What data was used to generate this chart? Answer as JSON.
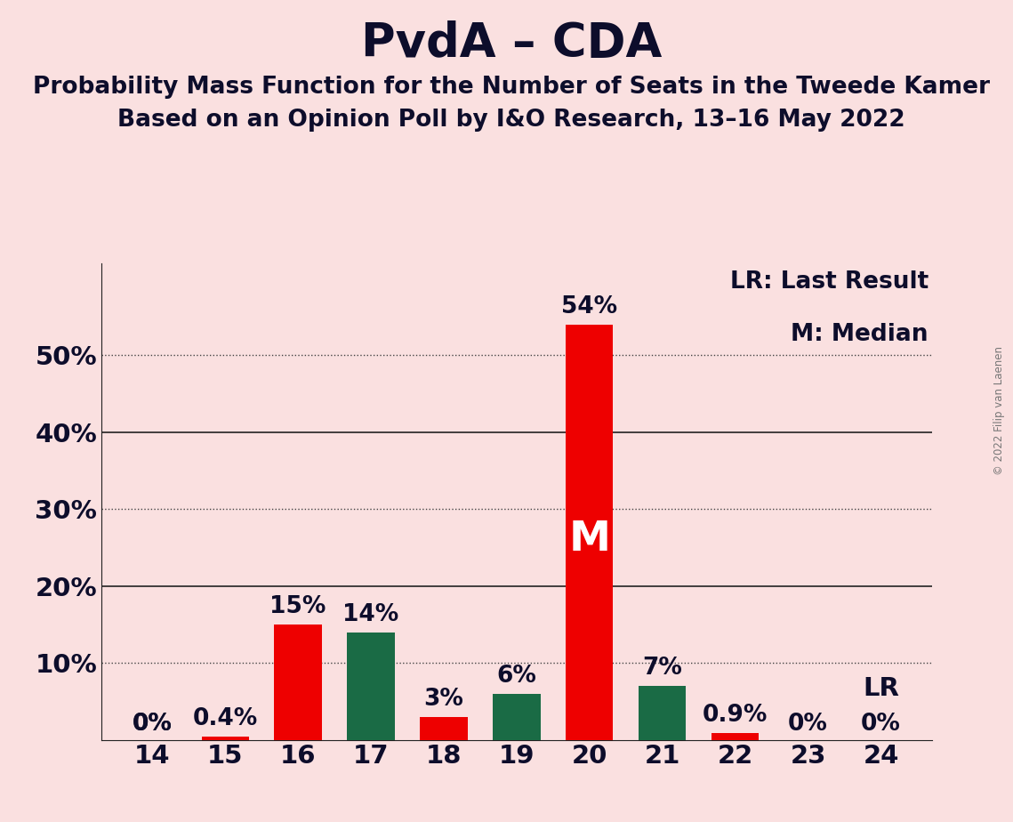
{
  "title": "PvdA – CDA",
  "subtitle1": "Probability Mass Function for the Number of Seats in the Tweede Kamer",
  "subtitle2": "Based on an Opinion Poll by I&O Research, 13–16 May 2022",
  "copyright": "© 2022 Filip van Laenen",
  "seats": [
    14,
    15,
    16,
    17,
    18,
    19,
    20,
    21,
    22,
    23,
    24
  ],
  "values": [
    0.0,
    0.4,
    15.0,
    14.0,
    3.0,
    6.0,
    54.0,
    7.0,
    0.9,
    0.0,
    0.0
  ],
  "colors": [
    "#EE0000",
    "#EE0000",
    "#EE0000",
    "#1A6B45",
    "#EE0000",
    "#1A6B45",
    "#EE0000",
    "#1A6B45",
    "#EE0000",
    "#EE0000",
    "#EE0000"
  ],
  "bar_labels": [
    "0%",
    "0.4%",
    "15%",
    "14%",
    "3%",
    "6%",
    "54%",
    "7%",
    "0.9%",
    "0%",
    ""
  ],
  "show_bar": [
    false,
    true,
    true,
    true,
    true,
    true,
    true,
    true,
    true,
    false,
    false
  ],
  "lr_seat_idx": 10,
  "lr_text": "LR",
  "lr_pct": "0%",
  "median_seat_idx": 6,
  "median_label": "M",
  "legend_lr": "LR: Last Result",
  "legend_m": "M: Median",
  "background_color": "#FAE0E0",
  "text_color": "#0D0D2B",
  "bar_width": 0.65,
  "ylim_max": 62,
  "yticks": [
    10,
    20,
    30,
    40,
    50
  ],
  "ytick_labels": [
    "10%",
    "20%",
    "30%",
    "40%",
    "50%"
  ],
  "dotted_yticks": [
    10,
    30,
    50
  ],
  "solid_yticks": [
    20,
    40
  ],
  "title_fontsize": 38,
  "subtitle_fontsize": 19,
  "bar_label_fontsize": 19,
  "tick_fontsize": 21,
  "legend_fontsize": 19,
  "median_fontsize": 34
}
